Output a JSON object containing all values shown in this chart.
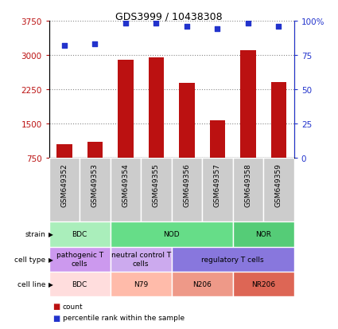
{
  "title": "GDS3999 / 10438308",
  "samples": [
    "GSM649352",
    "GSM649353",
    "GSM649354",
    "GSM649355",
    "GSM649356",
    "GSM649357",
    "GSM649358",
    "GSM649359"
  ],
  "counts": [
    1050,
    1100,
    2900,
    2950,
    2380,
    1570,
    3100,
    2400
  ],
  "percentiles": [
    82,
    83,
    98,
    98,
    96,
    94,
    98,
    96
  ],
  "ylim_left": [
    750,
    3750
  ],
  "ylim_right": [
    0,
    100
  ],
  "yticks_left": [
    750,
    1500,
    2250,
    3000,
    3750
  ],
  "yticks_right": [
    0,
    25,
    50,
    75,
    100
  ],
  "ytick_right_labels": [
    "0",
    "25",
    "50",
    "75",
    "100%"
  ],
  "bar_color": "#bb1111",
  "dot_color": "#2233cc",
  "dot_size": 18,
  "strain_groups": [
    {
      "label": "BDC",
      "cols": [
        0,
        1
      ],
      "color": "#aaeebb"
    },
    {
      "label": "NOD",
      "cols": [
        2,
        3,
        4,
        5
      ],
      "color": "#66dd88"
    },
    {
      "label": "NOR",
      "cols": [
        6,
        7
      ],
      "color": "#55cc77"
    }
  ],
  "celltype_groups": [
    {
      "label": "pathogenic T\ncells",
      "cols": [
        0,
        1
      ],
      "color": "#cc99ee"
    },
    {
      "label": "neutral control T\ncells",
      "cols": [
        2,
        3
      ],
      "color": "#ccaaee"
    },
    {
      "label": "regulatory T cells",
      "cols": [
        4,
        5,
        6,
        7
      ],
      "color": "#8877dd"
    }
  ],
  "cellline_groups": [
    {
      "label": "BDC",
      "cols": [
        0,
        1
      ],
      "color": "#ffdddd"
    },
    {
      "label": "N79",
      "cols": [
        2,
        3
      ],
      "color": "#ffbbaa"
    },
    {
      "label": "N206",
      "cols": [
        4,
        5
      ],
      "color": "#ee9988"
    },
    {
      "label": "NR206",
      "cols": [
        6,
        7
      ],
      "color": "#dd6655"
    }
  ],
  "row_labels": [
    "strain",
    "cell type",
    "cell line"
  ],
  "grid_color": "#888888",
  "legend_count_color": "#bb1111",
  "legend_pct_color": "#2233cc",
  "bar_width": 0.5
}
